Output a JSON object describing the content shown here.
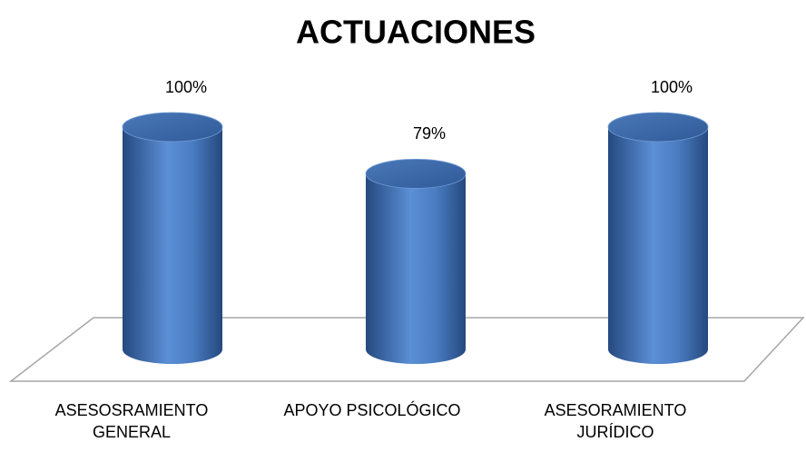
{
  "chart_data": {
    "type": "cylinder-bar",
    "title": "ACTUACIONES",
    "categories": [
      "ASESOSRAMIENTO GENERAL",
      "APOYO PSICOLÓGICO",
      "ASESORAMIENTO JURÍDICO"
    ],
    "values": [
      100,
      79,
      100
    ],
    "value_labels": [
      "100%",
      "79%",
      "100%"
    ],
    "color": "#4f81bd"
  }
}
